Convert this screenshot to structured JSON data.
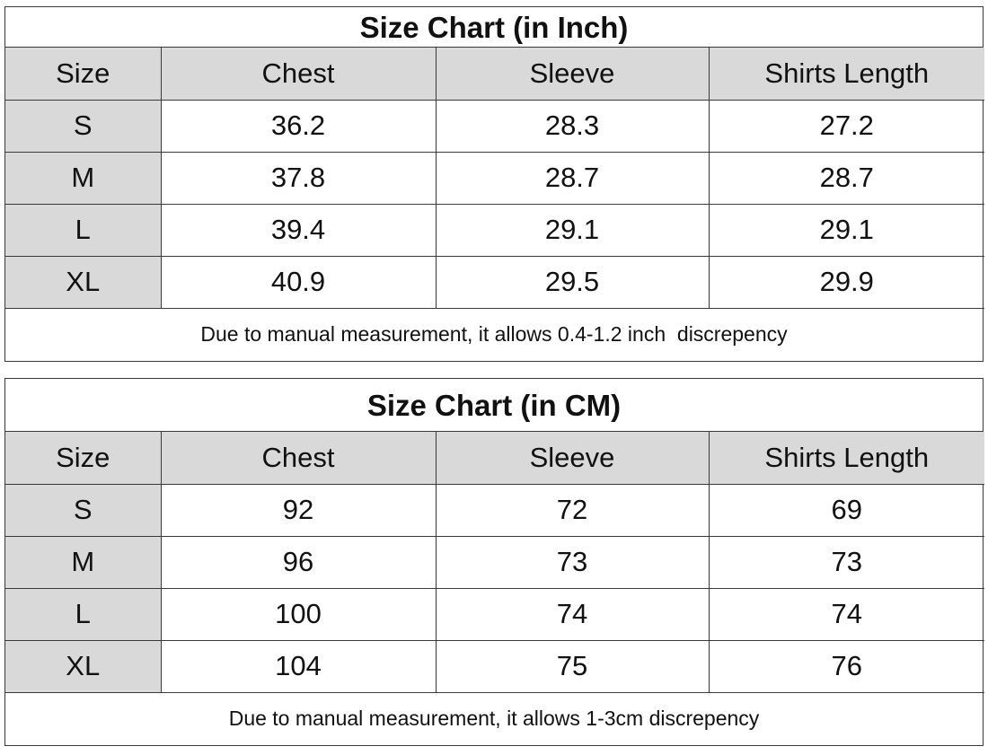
{
  "inch_chart": {
    "title": "Size Chart (in Inch)",
    "columns": [
      "Size",
      "Chest",
      "Sleeve",
      "Shirts Length"
    ],
    "rows": [
      {
        "size": "S",
        "chest": "36.2",
        "sleeve": "28.3",
        "length": "27.2"
      },
      {
        "size": "M",
        "chest": "37.8",
        "sleeve": "28.7",
        "length": "28.7"
      },
      {
        "size": "L",
        "chest": "39.4",
        "sleeve": "29.1",
        "length": "29.1"
      },
      {
        "size": "XL",
        "chest": "40.9",
        "sleeve": "29.5",
        "length": "29.9"
      }
    ],
    "note": "Due to manual measurement, it allows 0.4-1.2 inch  discrepency"
  },
  "cm_chart": {
    "title": "Size Chart (in CM)",
    "columns": [
      "Size",
      "Chest",
      "Sleeve",
      "Shirts Length"
    ],
    "rows": [
      {
        "size": "S",
        "chest": "92",
        "sleeve": "72",
        "length": "69"
      },
      {
        "size": "M",
        "chest": "96",
        "sleeve": "73",
        "length": "73"
      },
      {
        "size": "L",
        "chest": "100",
        "sleeve": "74",
        "length": "74"
      },
      {
        "size": "XL",
        "chest": "104",
        "sleeve": "75",
        "length": "76"
      }
    ],
    "note": "Due to manual measurement, it allows 1-3cm discrepency"
  },
  "colors": {
    "header_fill": "#d9d9d9",
    "border": "#3a3a3a",
    "background": "#ffffff",
    "text": "#111111"
  }
}
